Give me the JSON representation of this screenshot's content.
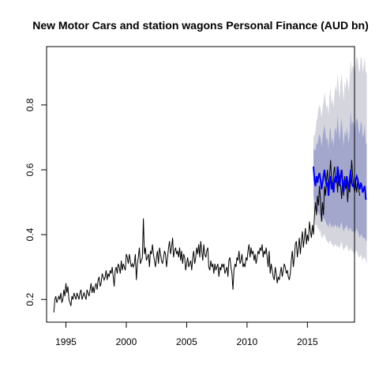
{
  "chart_data": {
    "type": "line",
    "title": "New Motor Cars and station wagons Personal Finance (AUD bn)",
    "xlabel": "",
    "ylabel": "",
    "xlim": [
      1993.4,
      2018.9
    ],
    "ylim": [
      0.13,
      0.98
    ],
    "xticks": [
      1995,
      2000,
      2005,
      2010,
      2015
    ],
    "yticks": [
      0.2,
      0.4,
      0.6,
      0.8
    ],
    "x_start": 1994.0,
    "x_step": 0.08333,
    "series": [
      {
        "role": "observed",
        "color": "#000000",
        "values": [
          0.16,
          0.2,
          0.21,
          0.19,
          0.2,
          0.21,
          0.2,
          0.22,
          0.19,
          0.2,
          0.23,
          0.21,
          0.25,
          0.22,
          0.24,
          0.2,
          0.19,
          0.18,
          0.21,
          0.2,
          0.22,
          0.21,
          0.2,
          0.22,
          0.21,
          0.2,
          0.22,
          0.23,
          0.2,
          0.21,
          0.22,
          0.21,
          0.2,
          0.23,
          0.22,
          0.21,
          0.23,
          0.25,
          0.22,
          0.24,
          0.22,
          0.24,
          0.25,
          0.23,
          0.26,
          0.27,
          0.24,
          0.25,
          0.28,
          0.27,
          0.26,
          0.27,
          0.29,
          0.26,
          0.28,
          0.27,
          0.29,
          0.28,
          0.3,
          0.27,
          0.24,
          0.29,
          0.3,
          0.28,
          0.31,
          0.3,
          0.28,
          0.32,
          0.29,
          0.31,
          0.3,
          0.29,
          0.34,
          0.33,
          0.31,
          0.34,
          0.32,
          0.3,
          0.31,
          0.3,
          0.31,
          0.34,
          0.26,
          0.31,
          0.33,
          0.36,
          0.31,
          0.32,
          0.33,
          0.45,
          0.34,
          0.36,
          0.32,
          0.33,
          0.34,
          0.3,
          0.35,
          0.34,
          0.37,
          0.34,
          0.32,
          0.3,
          0.33,
          0.35,
          0.31,
          0.36,
          0.34,
          0.32,
          0.31,
          0.33,
          0.35,
          0.34,
          0.3,
          0.33,
          0.36,
          0.38,
          0.34,
          0.36,
          0.39,
          0.33,
          0.35,
          0.36,
          0.34,
          0.35,
          0.33,
          0.36,
          0.32,
          0.35,
          0.31,
          0.34,
          0.33,
          0.29,
          0.31,
          0.33,
          0.3,
          0.31,
          0.32,
          0.29,
          0.33,
          0.35,
          0.31,
          0.33,
          0.36,
          0.34,
          0.37,
          0.33,
          0.38,
          0.35,
          0.32,
          0.37,
          0.34,
          0.33,
          0.35,
          0.36,
          0.3,
          0.29,
          0.32,
          0.3,
          0.31,
          0.28,
          0.31,
          0.29,
          0.3,
          0.31,
          0.27,
          0.3,
          0.29,
          0.31,
          0.3,
          0.31,
          0.28,
          0.29,
          0.3,
          0.27,
          0.32,
          0.33,
          0.3,
          0.28,
          0.23,
          0.29,
          0.31,
          0.3,
          0.33,
          0.32,
          0.35,
          0.31,
          0.32,
          0.34,
          0.3,
          0.31,
          0.3,
          0.33,
          0.32,
          0.35,
          0.37,
          0.33,
          0.36,
          0.34,
          0.35,
          0.32,
          0.34,
          0.31,
          0.33,
          0.35,
          0.34,
          0.36,
          0.35,
          0.37,
          0.33,
          0.35,
          0.34,
          0.36,
          0.33,
          0.3,
          0.35,
          0.28,
          0.31,
          0.29,
          0.27,
          0.26,
          0.3,
          0.28,
          0.25,
          0.27,
          0.26,
          0.28,
          0.3,
          0.27,
          0.29,
          0.31,
          0.3,
          0.28,
          0.29,
          0.27,
          0.26,
          0.28,
          0.32,
          0.35,
          0.3,
          0.33,
          0.37,
          0.38,
          0.33,
          0.36,
          0.39,
          0.34,
          0.38,
          0.41,
          0.36,
          0.39,
          0.42,
          0.37,
          0.4,
          0.38,
          0.44,
          0.41,
          0.39,
          0.43,
          0.4,
          0.46,
          0.5,
          0.46,
          0.52,
          0.49,
          0.55,
          0.51,
          0.44,
          0.5,
          0.46,
          0.55,
          0.52,
          0.57,
          0.6,
          0.53,
          0.58,
          0.63,
          0.57,
          0.54,
          0.59,
          0.61,
          0.56,
          0.58,
          0.53,
          0.6,
          0.57,
          0.55,
          0.51,
          0.57,
          0.52,
          0.58,
          0.54,
          0.56,
          0.5,
          0.55,
          0.53,
          0.57,
          0.63,
          0.58,
          0.55,
          0.53,
          0.56,
          0.53,
          0.57,
          0.54,
          0.52
        ]
      },
      {
        "role": "forecast",
        "color": "#0000ee",
        "x_start": 2015.5,
        "values": [
          0.61,
          0.57,
          0.55,
          0.58,
          0.56,
          0.58,
          0.59,
          0.57,
          0.54,
          0.56,
          0.58,
          0.6,
          0.57,
          0.55,
          0.56,
          0.52,
          0.57,
          0.58,
          0.54,
          0.56,
          0.53,
          0.57,
          0.58,
          0.56,
          0.61,
          0.57,
          0.55,
          0.58,
          0.6,
          0.56,
          0.53,
          0.57,
          0.55,
          0.58,
          0.56,
          0.54,
          0.57,
          0.6,
          0.56,
          0.55,
          0.55,
          0.54,
          0.57,
          0.58,
          0.57,
          0.55,
          0.54,
          0.56,
          0.55,
          0.53,
          0.54,
          0.55,
          0.51,
          0.51
        ],
        "band_80_color": "#a3a7cc",
        "band_95_color": "#d5d5de",
        "band_80": {
          "lower": [
            0.52,
            0.5,
            0.47,
            0.48,
            0.47,
            0.47,
            0.46,
            0.46,
            0.44,
            0.44,
            0.45,
            0.45,
            0.44,
            0.43,
            0.43,
            0.42,
            0.44,
            0.43,
            0.42,
            0.43,
            0.42,
            0.43,
            0.43,
            0.42,
            0.43,
            0.42,
            0.42,
            0.43,
            0.44,
            0.42,
            0.41,
            0.42,
            0.42,
            0.43,
            0.42,
            0.41,
            0.42,
            0.42,
            0.41,
            0.41,
            0.41,
            0.4,
            0.41,
            0.42,
            0.41,
            0.4,
            0.39,
            0.4,
            0.4,
            0.39,
            0.39,
            0.39,
            0.38,
            0.38
          ],
          "upper": [
            0.67,
            0.66,
            0.66,
            0.68,
            0.68,
            0.7,
            0.71,
            0.7,
            0.67,
            0.7,
            0.72,
            0.74,
            0.71,
            0.69,
            0.7,
            0.66,
            0.72,
            0.73,
            0.68,
            0.7,
            0.67,
            0.72,
            0.73,
            0.71,
            0.77,
            0.72,
            0.69,
            0.73,
            0.76,
            0.71,
            0.67,
            0.72,
            0.7,
            0.73,
            0.71,
            0.68,
            0.72,
            0.78,
            0.74,
            0.75,
            0.74,
            0.71,
            0.75,
            0.76,
            0.75,
            0.72,
            0.71,
            0.75,
            0.74,
            0.7,
            0.71,
            0.74,
            0.68,
            0.68
          ]
        },
        "band_95": {
          "lower": [
            0.48,
            0.46,
            0.43,
            0.43,
            0.42,
            0.42,
            0.41,
            0.41,
            0.39,
            0.39,
            0.4,
            0.4,
            0.39,
            0.38,
            0.38,
            0.37,
            0.38,
            0.38,
            0.37,
            0.37,
            0.36,
            0.37,
            0.37,
            0.36,
            0.37,
            0.36,
            0.36,
            0.37,
            0.38,
            0.36,
            0.35,
            0.36,
            0.36,
            0.37,
            0.36,
            0.35,
            0.35,
            0.36,
            0.35,
            0.35,
            0.34,
            0.34,
            0.35,
            0.35,
            0.34,
            0.33,
            0.33,
            0.34,
            0.33,
            0.32,
            0.33,
            0.33,
            0.32,
            0.31
          ],
          "upper": [
            0.71,
            0.7,
            0.72,
            0.75,
            0.76,
            0.79,
            0.8,
            0.79,
            0.76,
            0.79,
            0.81,
            0.84,
            0.81,
            0.79,
            0.8,
            0.77,
            0.83,
            0.85,
            0.8,
            0.82,
            0.79,
            0.84,
            0.86,
            0.84,
            0.9,
            0.85,
            0.82,
            0.87,
            0.9,
            0.85,
            0.81,
            0.87,
            0.85,
            0.89,
            0.87,
            0.84,
            0.88,
            0.94,
            0.9,
            0.92,
            0.92,
            0.89,
            0.93,
            0.95,
            0.94,
            0.91,
            0.9,
            0.95,
            0.94,
            0.9,
            0.92,
            0.95,
            0.9,
            0.9
          ]
        }
      }
    ],
    "grid": false,
    "legend": "none"
  }
}
